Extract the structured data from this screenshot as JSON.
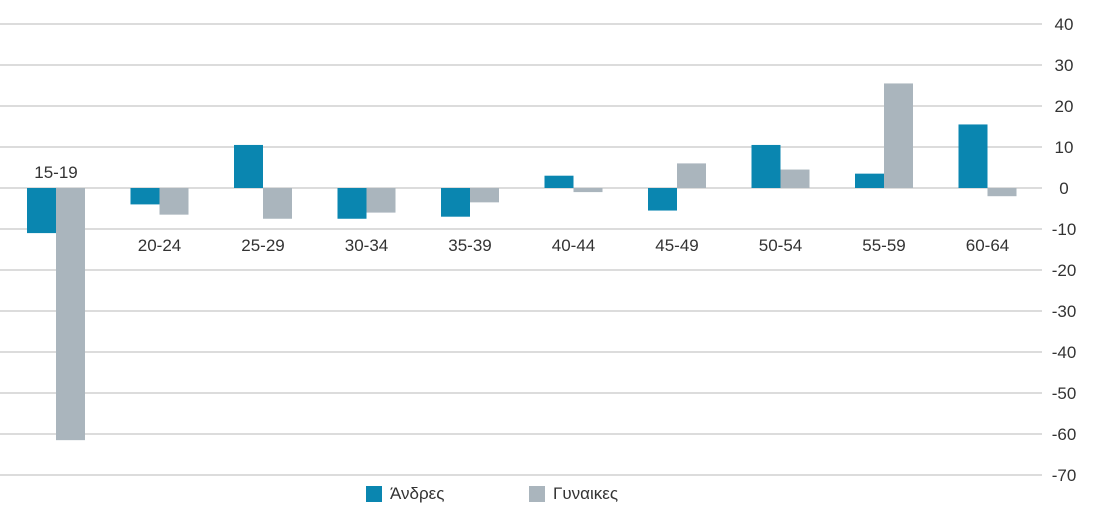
{
  "colors": {
    "men": "#0a86b0",
    "women": "#aab5bd",
    "grid": "#b8b8b8",
    "text": "#333333"
  },
  "legend": {
    "men_label": "Άνδρες",
    "women_label": "Γυναικες"
  },
  "chart_data": {
    "type": "bar",
    "categories": [
      "15-19",
      "20-24",
      "25-29",
      "30-34",
      "35-39",
      "40-44",
      "45-49",
      "50-54",
      "55-59",
      "60-64"
    ],
    "series": [
      {
        "name": "Άνδρες",
        "values": [
          -11,
          -4,
          10.5,
          -7.5,
          -7,
          3,
          -5.5,
          10.5,
          3.5,
          15.5
        ]
      },
      {
        "name": "Γυναικες",
        "values": [
          -61.5,
          -6.5,
          -7.5,
          -6,
          -3.5,
          -1,
          6,
          4.5,
          25.5,
          -2
        ]
      }
    ],
    "y_ticks": [
      "40",
      "30",
      "20",
      "10",
      "0",
      "-10",
      "-20",
      "-30",
      "-40",
      "-50",
      "-60",
      "-70"
    ],
    "ylim": [
      -70,
      40
    ],
    "grid": true,
    "legend_position": "bottom-center",
    "y_axis_side": "right"
  }
}
